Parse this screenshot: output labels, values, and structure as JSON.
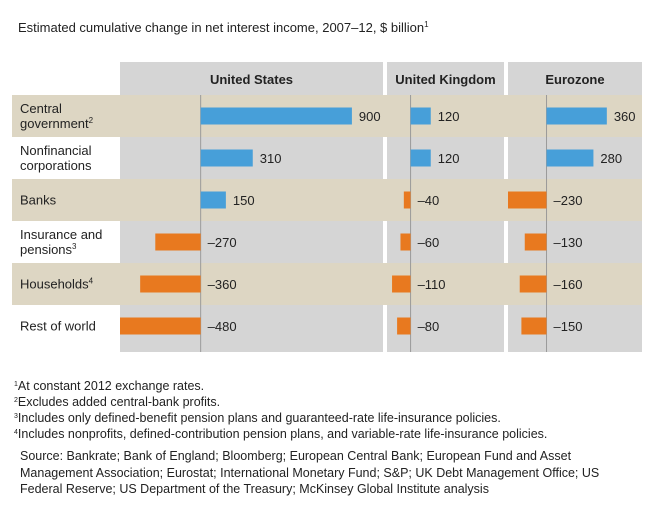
{
  "chart_data": {
    "type": "bar",
    "orientation": "horizontal",
    "title": "Estimated cumulative change in net interest income, 2007–12, $ billion",
    "title_note": "1",
    "categories": [
      "Central government",
      "Nonfinancial corporations",
      "Banks",
      "Insurance and pensions",
      "Households",
      "Rest of world"
    ],
    "category_notes": [
      "2",
      null,
      null,
      "3",
      "4",
      null
    ],
    "positive_color": "#479fd9",
    "negative_color": "#e8791f",
    "series": [
      {
        "name": "United States",
        "values": [
          900,
          310,
          150,
          -270,
          -360,
          -480
        ],
        "value_labels": [
          "900",
          "310",
          "150",
          "–270",
          "–360",
          "–480"
        ],
        "xlim": [
          -480,
          1085
        ]
      },
      {
        "name": "United Kingdom",
        "values": [
          120,
          120,
          -40,
          -60,
          -110,
          -80
        ],
        "value_labels": [
          "120",
          "120",
          "–40",
          "–60",
          "–110",
          "–80"
        ],
        "xlim": [
          -140,
          555
        ]
      },
      {
        "name": "Eurozone",
        "values": [
          360,
          280,
          -230,
          -130,
          -160,
          -150
        ],
        "value_labels": [
          "360",
          "280",
          "–230",
          "–130",
          "–160",
          "–150"
        ],
        "xlim": [
          -230,
          570
        ]
      }
    ],
    "footnotes": [
      {
        "marker": "1",
        "text": "At constant 2012 exchange rates."
      },
      {
        "marker": "2",
        "text": "Excludes added central-bank profits."
      },
      {
        "marker": "3",
        "text": "Includes only defined-benefit pension plans and guaranteed-rate life-insurance policies."
      },
      {
        "marker": "4",
        "text": "Includes nonprofits, defined-contribution pension plans, and variable-rate life-insurance policies."
      }
    ],
    "source": "Source: Bankrate; Bank of England; Bloomberg; European Central Bank; European Fund and Asset Management Association; Eurostat; International Monetary Fund; S&P; UK Debt Management Office; US Federal Reserve; US Department of the Treasury; McKinsey Global Institute analysis"
  }
}
